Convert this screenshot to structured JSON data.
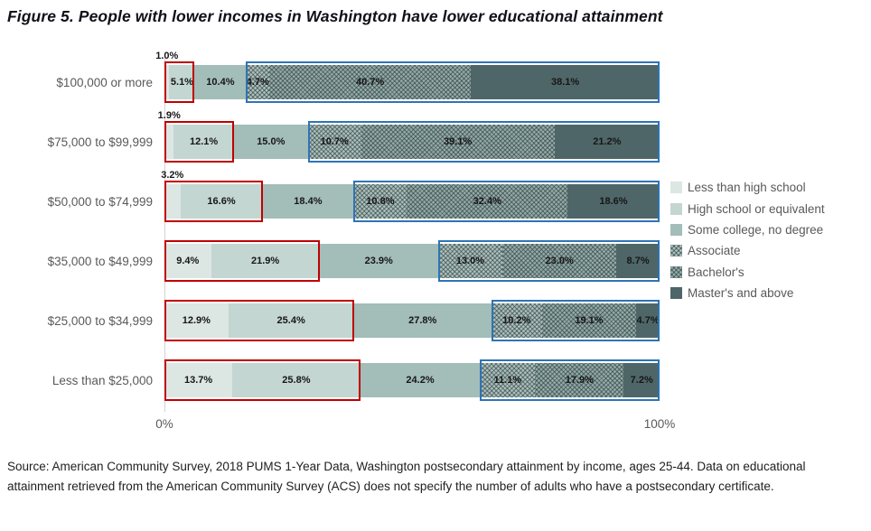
{
  "title": "Figure 5. People with lower incomes in Washington have lower educational attainment",
  "axis": {
    "x_min_label": "0%",
    "x_max_label": "100%"
  },
  "source_note": "Source: American Community Survey, 2018 PUMS 1-Year Data, Washington postsecondary attainment by income, ages 25-44. Data on educational attainment retrieved from the American Community Survey (ACS) does not specify the number of adults who have a postsecondary certificate.",
  "chart_data": {
    "type": "bar",
    "orientation": "horizontal",
    "stacked": true,
    "title": "Figure 5. People with lower incomes in Washington have lower educational attainment",
    "xlim": [
      0,
      100
    ],
    "x_tick_labels": [
      "0%",
      "100%"
    ],
    "legend_position": "right",
    "categories": [
      "$100,000 or more",
      "$75,000 to $99,999",
      "$50,000 to $74,999",
      "$35,000 to $49,999",
      "$25,000 to $34,999",
      "Less than $25,000"
    ],
    "series": [
      {
        "name": "Less than high school",
        "slug": "less-than-high-school",
        "color": "#dce6e3",
        "pattern": "none",
        "values": [
          1.0,
          1.9,
          3.2,
          9.4,
          12.9,
          13.7
        ],
        "labels": [
          "",
          "",
          "",
          "9.4%",
          "12.9%",
          "13.7%"
        ]
      },
      {
        "name": "High school or equivalent",
        "slug": "high-school-or-equivalent",
        "color": "#c3d6d2",
        "pattern": "none",
        "values": [
          5.1,
          12.1,
          16.6,
          21.9,
          25.4,
          25.8
        ],
        "labels": [
          "5.1%",
          "12.1%",
          "16.6%",
          "21.9%",
          "25.4%",
          "25.8%"
        ]
      },
      {
        "name": "Some college, no degree",
        "slug": "some-college-no-degree",
        "color": "#a3bdb9",
        "pattern": "none",
        "values": [
          10.4,
          15.0,
          18.4,
          23.9,
          27.8,
          24.2
        ],
        "labels": [
          "10.4%",
          "15.0%",
          "18.4%",
          "23.9%",
          "27.8%",
          "24.2%"
        ]
      },
      {
        "name": "Associate",
        "slug": "associate",
        "color": "#aabfbb",
        "pattern": "cross",
        "values": [
          4.7,
          10.7,
          10.8,
          13.0,
          10.2,
          11.1
        ],
        "labels": [
          "4.7%",
          "10.7%",
          "10.8%",
          "13.0%",
          "10.2%",
          "11.1%"
        ]
      },
      {
        "name": "Bachelor's",
        "slug": "bachelors",
        "color": "#93aaa7",
        "pattern": "cross",
        "values": [
          40.7,
          39.1,
          32.4,
          23.0,
          19.1,
          17.9
        ],
        "labels": [
          "40.7%",
          "39.1%",
          "32.4%",
          "23.0%",
          "19.1%",
          "17.9%"
        ]
      },
      {
        "name": "Master's and above",
        "slug": "masters-and-above",
        "color": "#4f6668",
        "pattern": "none",
        "values": [
          38.1,
          21.2,
          18.6,
          8.7,
          4.7,
          7.2
        ],
        "labels": [
          "38.1%",
          "21.2%",
          "18.6%",
          "8.7%",
          "4.7%",
          "7.2%"
        ]
      }
    ],
    "above_labels": [
      {
        "row": 0,
        "text": "1.0%"
      },
      {
        "row": 1,
        "text": "1.9%"
      },
      {
        "row": 2,
        "text": "3.2%"
      }
    ],
    "highlights": {
      "red": {
        "color": "#c00000",
        "series_span": [
          0,
          1
        ]
      },
      "blue": {
        "color": "#2e74b5",
        "series_span": [
          3,
          5
        ]
      }
    }
  }
}
